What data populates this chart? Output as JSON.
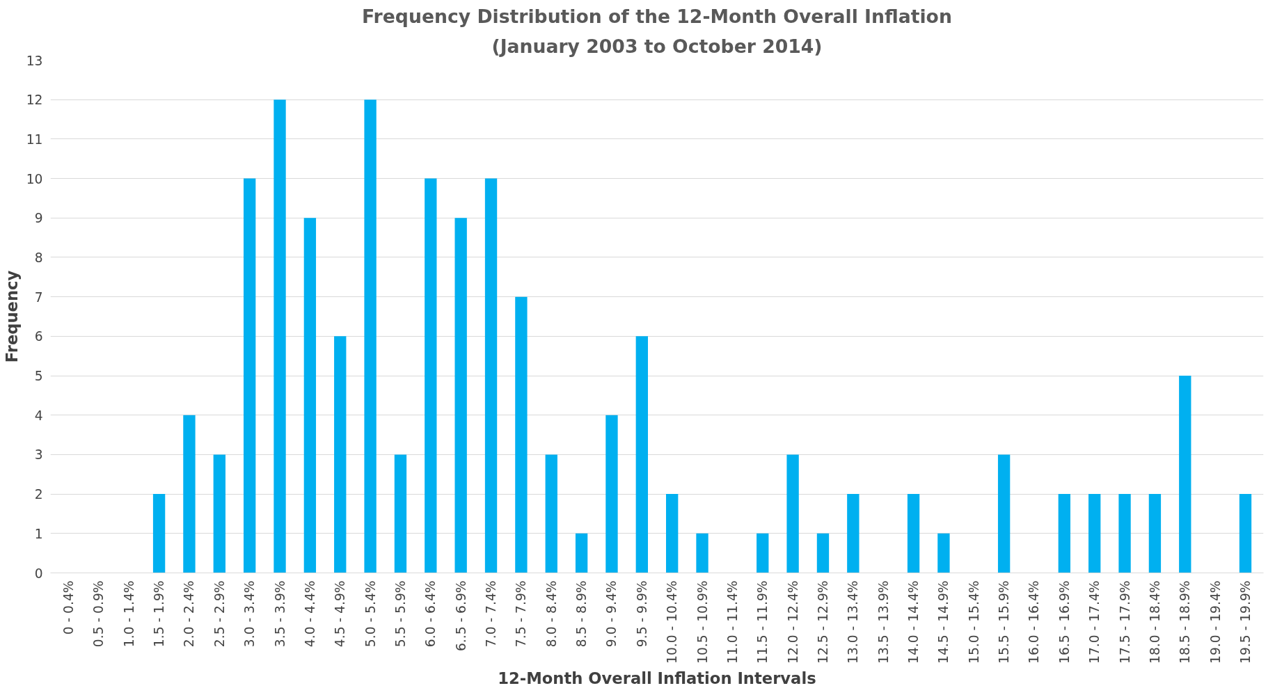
{
  "chart_data": {
    "type": "bar",
    "title": "Frequency Distribution of the 12-Month Overall Inflation",
    "subtitle": "(January 2003 to October 2014)",
    "xlabel": "12-Month Overall Inflation Intervals",
    "ylabel": "Frequency",
    "categories": [
      "0 - 0.4%",
      "0.5 - 0.9%",
      "1.0 - 1.4%",
      "1.5 - 1.9%",
      "2.0 - 2.4%",
      "2.5 - 2.9%",
      "3.0 - 3.4%",
      "3.5 - 3.9%",
      "4.0 - 4.4%",
      "4.5 - 4.9%",
      "5.0 - 5.4%",
      "5.5 - 5.9%",
      "6.0 - 6.4%",
      "6..5 - 6.9%",
      "7.0 - 7.4%",
      "7.5 - 7.9%",
      "8.0 - 8.4%",
      "8.5 - 8.9%",
      "9.0 - 9.4%",
      "9.5 - 9.9%",
      "10.0 - 10.4%",
      "10.5 - 10.9%",
      "11.0 - 11.4%",
      "11.5 - 11.9%",
      "12.0 - 12.4%",
      "12.5 - 12.9%",
      "13.0 - 13.4%",
      "13.5 - 13.9%",
      "14.0 - 14.4%",
      "14.5 - 14.9%",
      "15.0 - 15.4%",
      "15.5 - 15.9%",
      "16.0 - 16.4%",
      "16.5 - 16.9%",
      "17.0 - 17.4%",
      "17.5 - 17.9%",
      "18.0 - 18.4%",
      "18.5 - 18.9%",
      "19.0 - 19.4%",
      "19.5 - 19.9%"
    ],
    "values": [
      0,
      0,
      0,
      2,
      4,
      3,
      10,
      12,
      9,
      6,
      12,
      3,
      10,
      9,
      10,
      7,
      3,
      1,
      4,
      6,
      2,
      1,
      0,
      1,
      3,
      1,
      2,
      0,
      2,
      1,
      0,
      3,
      0,
      2,
      2,
      2,
      2,
      5,
      0,
      2
    ],
    "color": "#00b0f0",
    "ylim": [
      0,
      13
    ],
    "yticks": [
      0,
      1,
      2,
      3,
      4,
      5,
      6,
      7,
      8,
      9,
      10,
      11,
      12,
      13
    ],
    "grid": "y"
  }
}
